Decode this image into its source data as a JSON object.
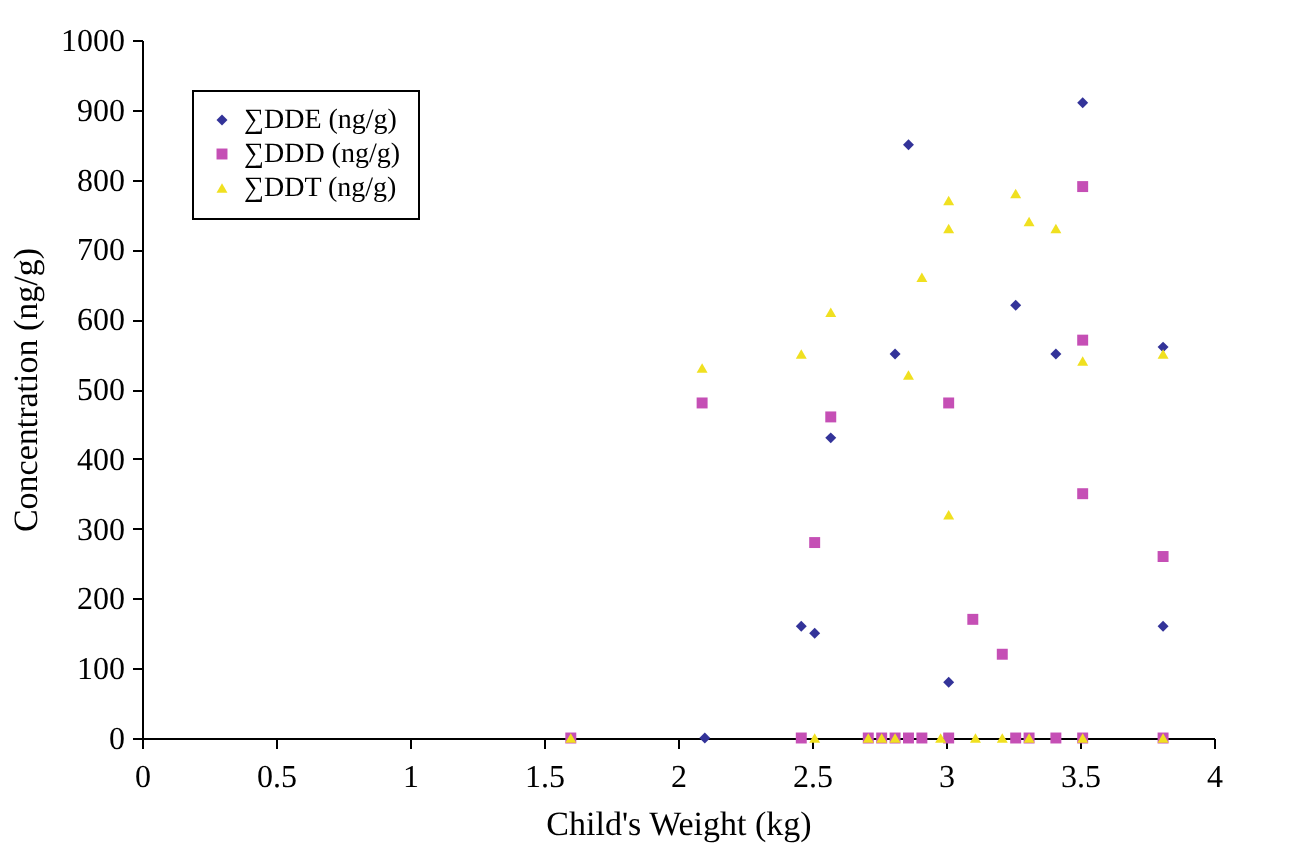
{
  "chart_data": {
    "type": "scatter",
    "xlabel": "Child's Weight (kg)",
    "ylabel": "Concentration (ng/g)",
    "xlim": [
      0,
      4
    ],
    "xticks": [
      0,
      0.5,
      1,
      1.5,
      2,
      2.5,
      3,
      3.5,
      4
    ],
    "ylim": [
      0,
      1000
    ],
    "yticks": [
      0,
      100,
      200,
      300,
      400,
      500,
      600,
      700,
      800,
      900,
      1000
    ],
    "grid": false,
    "legend": "top left",
    "series": [
      {
        "name": "∑DDE (ng/g)",
        "color": "#333399",
        "marker": "diamond",
        "x": [
          2.1,
          2.46,
          2.51,
          2.57,
          2.81,
          2.86,
          3.01,
          3.26,
          3.41,
          3.51,
          3.81,
          3.81
        ],
        "values": [
          0,
          160,
          150,
          430,
          550,
          850,
          80,
          620,
          550,
          910,
          560,
          160
        ]
      },
      {
        "name": "∑DDD (ng/g)",
        "color": "#c54fb5",
        "marker": "square",
        "x": [
          2.09,
          2.51,
          2.57,
          3.01,
          3.1,
          3.21,
          3.51,
          3.51,
          3.51,
          3.81,
          1.6,
          2.46,
          2.71,
          2.76,
          2.81,
          2.86,
          2.91,
          3.01,
          3.26,
          3.31,
          3.41,
          3.51,
          3.81
        ],
        "values": [
          480,
          280,
          460,
          480,
          170,
          120,
          790,
          570,
          350,
          260,
          0,
          0,
          0,
          0,
          0,
          0,
          0,
          0,
          0,
          0,
          0,
          0,
          0
        ]
      },
      {
        "name": "∑DDT (ng/g)",
        "color": "#f0e020",
        "marker": "triangle",
        "x": [
          2.09,
          2.46,
          2.57,
          2.86,
          2.91,
          3.01,
          3.01,
          3.01,
          3.26,
          3.31,
          3.41,
          3.51,
          3.81,
          1.6,
          2.51,
          2.71,
          2.76,
          2.81,
          2.98,
          3.11,
          3.21,
          3.31,
          3.51,
          3.81
        ],
        "values": [
          530,
          550,
          610,
          520,
          660,
          770,
          730,
          320,
          780,
          740,
          730,
          540,
          550,
          0,
          0,
          0,
          0,
          0,
          0,
          0,
          0,
          0,
          0,
          0
        ]
      }
    ]
  }
}
